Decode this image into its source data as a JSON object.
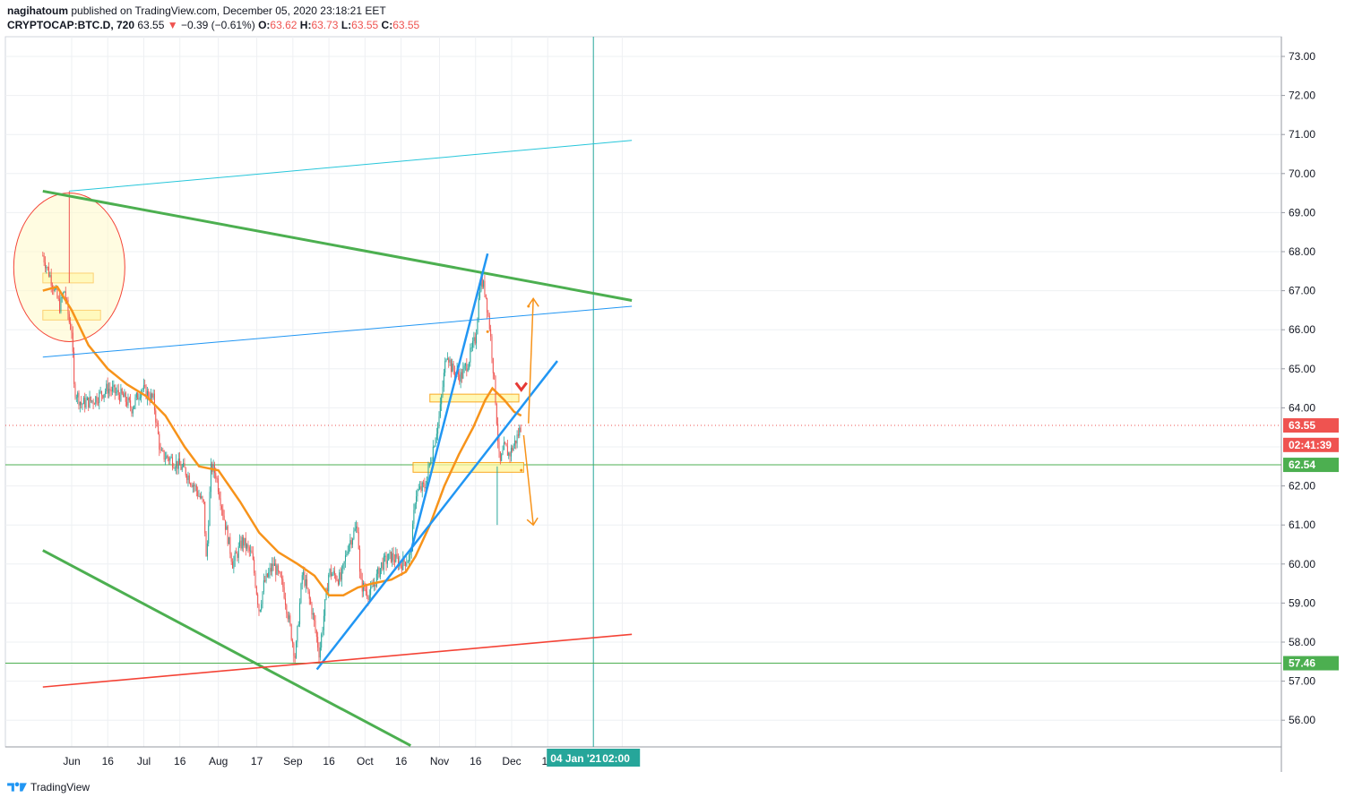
{
  "header": {
    "publisher": "nagihatoum",
    "published_text": "published on TradingView.com, December 05, 2020 23:18:21 EET",
    "symbol": "CRYPTOCAP:BTC.D, 720",
    "last": "63.55",
    "change_arrow": "▼",
    "change": "−0.39 (−0.61%)",
    "o_label": "O:",
    "o_val": "63.62",
    "h_label": "H:",
    "h_val": "63.73",
    "l_label": "L:",
    "l_val": "63.55",
    "c_label": "C:",
    "c_val": "63.55"
  },
  "footer": {
    "brand": "TradingView",
    "logo_icon": "tradingview-logo-icon"
  },
  "colors": {
    "up": "#26a69a",
    "down": "#ef5350",
    "ma": "#f7931a",
    "green_line": "#4caf50",
    "blue_line": "#2196f3",
    "red_line": "#f44336",
    "zone_fill": "#fff59d",
    "zone_border": "#f9a825",
    "circle_stroke": "#f44336",
    "hline": "#4caf50",
    "vline": "#26a69a"
  },
  "chart_data": {
    "type": "candlestick",
    "title": "",
    "ylim": [
      55.3,
      73.4
    ],
    "x_ticks": [
      "Jun",
      "16",
      "Jul",
      "16",
      "Aug",
      "17",
      "Sep",
      "16",
      "Oct",
      "16",
      "Nov",
      "16",
      "Dec",
      "16",
      "16"
    ],
    "y_ticks": [
      "73.00",
      "72.00",
      "71.00",
      "70.00",
      "69.00",
      "68.00",
      "67.00",
      "66.00",
      "65.00",
      "64.00",
      "62.00",
      "61.00",
      "60.00",
      "59.00",
      "58.00",
      "57.00",
      "56.00"
    ],
    "price_labels": [
      {
        "text": "63.55",
        "value": 63.55,
        "color": "#ef5350"
      },
      {
        "text": "02:41:39",
        "value": 63.05,
        "color": "#ef5350"
      },
      {
        "text": "62.54",
        "value": 62.54,
        "color": "#4caf50"
      },
      {
        "text": "57.46",
        "value": 57.46,
        "color": "#4caf50"
      }
    ],
    "time_labels": [
      {
        "text": "04 Jan '21"
      },
      {
        "text": "02:00"
      }
    ],
    "close_path": [
      [
        "2020-05-20",
        67.9
      ],
      [
        "2020-05-24",
        67.2
      ],
      [
        "2020-05-27",
        66.6
      ],
      [
        "2020-05-29",
        67.0
      ],
      [
        "2020-05-31",
        66.2
      ],
      [
        "2020-06-01",
        66.0
      ],
      [
        "2020-06-02",
        64.5
      ],
      [
        "2020-06-05",
        64.1
      ],
      [
        "2020-06-10",
        64.2
      ],
      [
        "2020-06-16",
        64.5
      ],
      [
        "2020-06-22",
        64.3
      ],
      [
        "2020-06-26",
        64.0
      ],
      [
        "2020-06-30",
        64.5
      ],
      [
        "2020-07-05",
        64.2
      ],
      [
        "2020-07-08",
        62.8
      ],
      [
        "2020-07-12",
        62.7
      ],
      [
        "2020-07-18",
        62.4
      ],
      [
        "2020-07-22",
        62.0
      ],
      [
        "2020-07-26",
        61.5
      ],
      [
        "2020-07-27",
        60.0
      ],
      [
        "2020-07-29",
        62.5
      ],
      [
        "2020-07-31",
        62.3
      ],
      [
        "2020-08-03",
        61.3
      ],
      [
        "2020-08-07",
        60.0
      ],
      [
        "2020-08-11",
        60.6
      ],
      [
        "2020-08-15",
        60.2
      ],
      [
        "2020-08-18",
        58.8
      ],
      [
        "2020-08-20",
        59.5
      ],
      [
        "2020-08-24",
        60.0
      ],
      [
        "2020-08-28",
        59.4
      ],
      [
        "2020-09-02",
        57.6
      ],
      [
        "2020-09-05",
        59.8
      ],
      [
        "2020-09-09",
        58.8
      ],
      [
        "2020-09-12",
        57.7
      ],
      [
        "2020-09-16",
        59.8
      ],
      [
        "2020-09-21",
        59.6
      ],
      [
        "2020-09-24",
        60.5
      ],
      [
        "2020-09-28",
        61.0
      ],
      [
        "2020-09-29",
        59.5
      ],
      [
        "2020-10-03",
        59.2
      ],
      [
        "2020-10-08",
        60.0
      ],
      [
        "2020-10-12",
        60.2
      ],
      [
        "2020-10-16",
        60.0
      ],
      [
        "2020-10-20",
        60.2
      ],
      [
        "2020-10-22",
        61.8
      ],
      [
        "2020-10-26",
        62.0
      ],
      [
        "2020-10-28",
        62.6
      ],
      [
        "2020-11-01",
        63.8
      ],
      [
        "2020-11-04",
        65.5
      ],
      [
        "2020-11-06",
        65.0
      ],
      [
        "2020-11-10",
        64.8
      ],
      [
        "2020-11-13",
        65.2
      ],
      [
        "2020-11-16",
        65.8
      ],
      [
        "2020-11-18",
        67.3
      ],
      [
        "2020-11-20",
        67.0
      ],
      [
        "2020-11-22",
        66.0
      ],
      [
        "2020-11-24",
        64.5
      ],
      [
        "2020-11-26",
        62.5
      ],
      [
        "2020-11-28",
        63.0
      ],
      [
        "2020-11-30",
        62.8
      ],
      [
        "2020-12-03",
        63.2
      ],
      [
        "2020-12-05",
        63.55
      ]
    ],
    "moving_average": [
      [
        "2020-05-20",
        67.0
      ],
      [
        "2020-05-26",
        67.1
      ],
      [
        "2020-06-01",
        66.5
      ],
      [
        "2020-06-08",
        65.6
      ],
      [
        "2020-06-16",
        65.0
      ],
      [
        "2020-06-24",
        64.6
      ],
      [
        "2020-07-02",
        64.3
      ],
      [
        "2020-07-10",
        63.8
      ],
      [
        "2020-07-18",
        63.0
      ],
      [
        "2020-07-24",
        62.5
      ],
      [
        "2020-08-01",
        62.4
      ],
      [
        "2020-08-10",
        61.6
      ],
      [
        "2020-08-18",
        60.8
      ],
      [
        "2020-08-26",
        60.3
      ],
      [
        "2020-09-03",
        60.0
      ],
      [
        "2020-09-10",
        59.7
      ],
      [
        "2020-09-16",
        59.2
      ],
      [
        "2020-09-22",
        59.2
      ],
      [
        "2020-09-28",
        59.4
      ],
      [
        "2020-10-04",
        59.5
      ],
      [
        "2020-10-12",
        59.6
      ],
      [
        "2020-10-18",
        59.8
      ],
      [
        "2020-10-22",
        60.2
      ],
      [
        "2020-10-28",
        61.0
      ],
      [
        "2020-11-03",
        62.0
      ],
      [
        "2020-11-09",
        62.8
      ],
      [
        "2020-11-15",
        63.5
      ],
      [
        "2020-11-20",
        64.2
      ],
      [
        "2020-11-23",
        64.5
      ],
      [
        "2020-11-28",
        64.2
      ],
      [
        "2020-12-02",
        63.9
      ],
      [
        "2020-12-05",
        63.8
      ]
    ],
    "trend_lines": [
      {
        "color": "green",
        "from": [
          "2020-05-20",
          69.55
        ],
        "to": [
          "2021-01-20",
          66.75
        ]
      },
      {
        "color": "green",
        "from": [
          "2020-05-20",
          60.35
        ],
        "to": [
          "2020-10-20",
          55.35
        ]
      },
      {
        "color": "cyan",
        "from": [
          "2020-05-31",
          69.55
        ],
        "to": [
          "2021-01-20",
          70.85
        ]
      },
      {
        "color": "blue-thin",
        "from": [
          "2020-05-20",
          65.3
        ],
        "to": [
          "2021-01-20",
          66.6
        ]
      },
      {
        "color": "blue",
        "from": [
          "2020-09-11",
          57.3
        ],
        "to": [
          "2020-12-20",
          65.2
        ]
      },
      {
        "color": "blue",
        "from": [
          "2020-10-20",
          60.3
        ],
        "to": [
          "2020-11-21",
          67.95
        ]
      },
      {
        "color": "red",
        "from": [
          "2020-05-20",
          56.85
        ],
        "to": [
          "2021-01-20",
          58.2
        ]
      }
    ],
    "horizontal_lines": [
      62.54,
      57.46
    ],
    "zones": [
      {
        "from": "2020-05-20",
        "to": "2020-06-10",
        "top": 67.45,
        "bottom": 67.2
      },
      {
        "from": "2020-05-20",
        "to": "2020-06-13",
        "top": 66.5,
        "bottom": 66.25
      },
      {
        "from": "2020-10-28",
        "to": "2020-12-04",
        "top": 64.35,
        "bottom": 64.15
      },
      {
        "from": "2020-10-21",
        "to": "2020-12-06",
        "top": 62.6,
        "bottom": 62.35
      }
    ]
  }
}
